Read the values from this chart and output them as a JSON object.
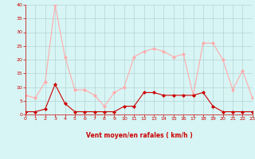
{
  "x": [
    0,
    1,
    2,
    3,
    4,
    5,
    6,
    7,
    8,
    9,
    10,
    11,
    12,
    13,
    14,
    15,
    16,
    17,
    18,
    19,
    20,
    21,
    22,
    23
  ],
  "rafales": [
    7,
    6,
    12,
    40,
    21,
    9,
    9,
    7,
    3,
    8,
    10,
    21,
    23,
    24,
    23,
    21,
    22,
    7,
    26,
    26,
    20,
    9,
    16,
    6
  ],
  "moyen": [
    1,
    1,
    2,
    11,
    4,
    1,
    1,
    1,
    1,
    1,
    3,
    3,
    8,
    8,
    7,
    7,
    7,
    7,
    8,
    3,
    1,
    1,
    1,
    1
  ],
  "color_rafales": "#ffaaaa",
  "color_moyen": "#cc0000",
  "bg_color": "#d8f5f5",
  "grid_color": "#aacccc",
  "xlabel": "Vent moyen/en rafales ( km/h )",
  "xlabel_color": "#cc0000",
  "tick_color": "#cc0000",
  "axis_color": "#cc0000",
  "ylim": [
    0,
    40
  ],
  "xlim": [
    0,
    23
  ],
  "yticks": [
    0,
    5,
    10,
    15,
    20,
    25,
    30,
    35,
    40
  ],
  "xticks": [
    0,
    1,
    2,
    3,
    4,
    5,
    6,
    7,
    8,
    9,
    10,
    11,
    12,
    13,
    14,
    15,
    16,
    17,
    18,
    19,
    20,
    21,
    22,
    23
  ]
}
